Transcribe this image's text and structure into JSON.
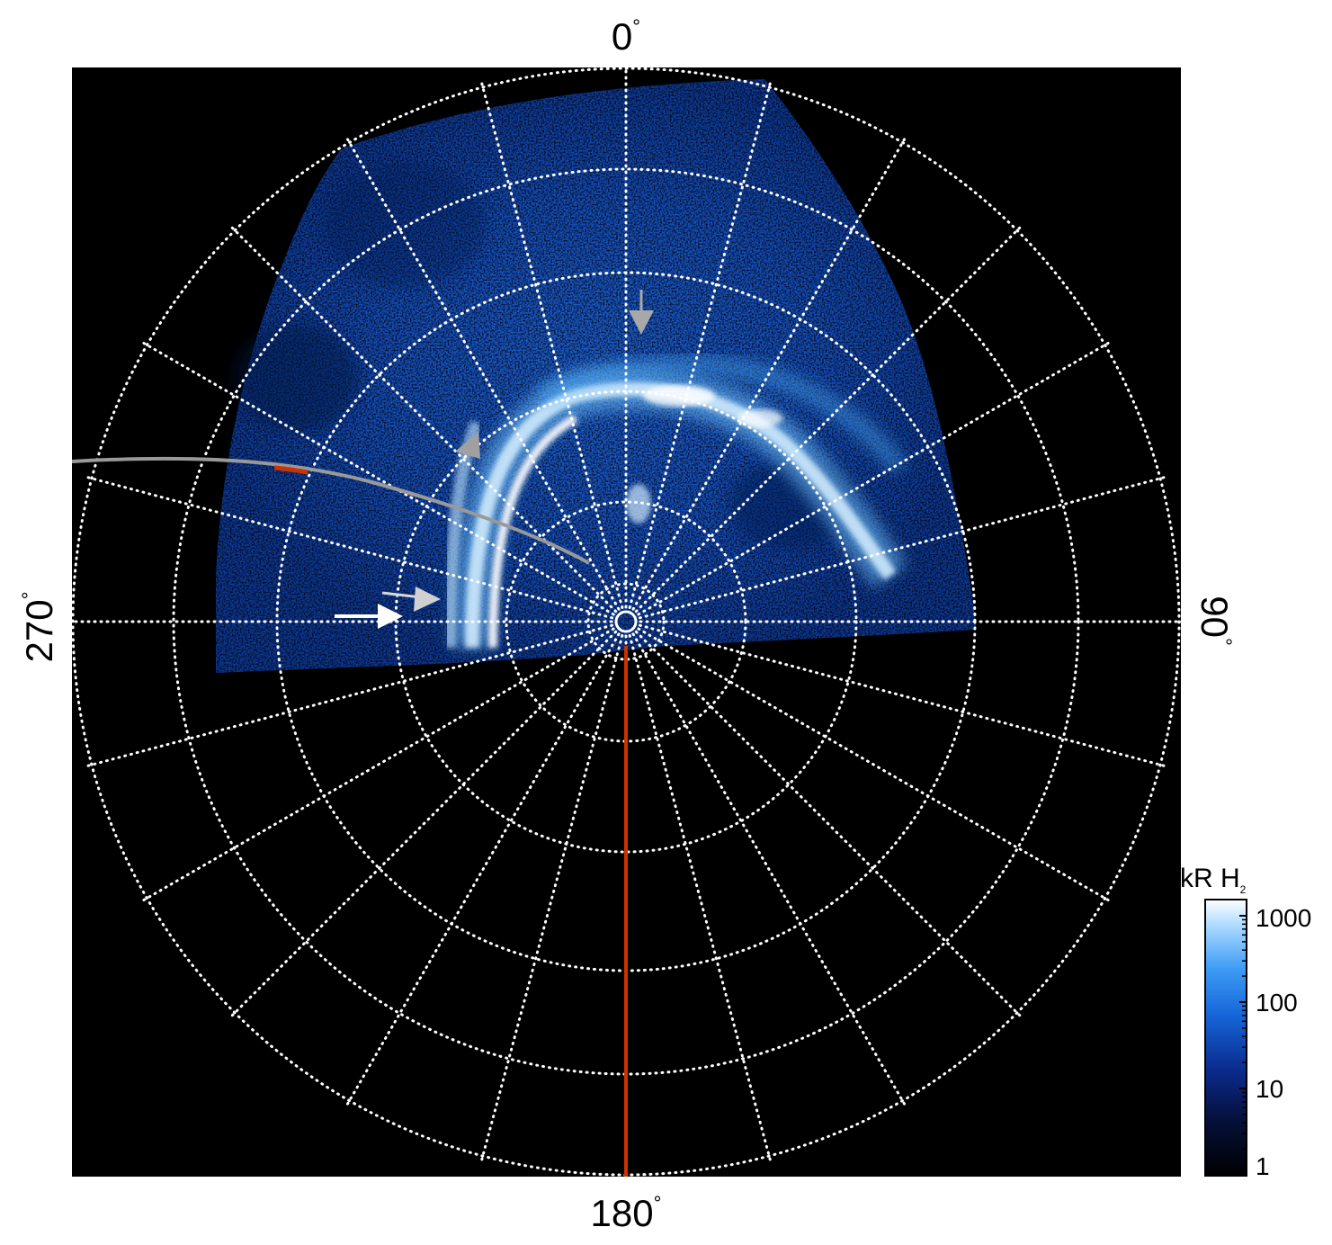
{
  "figure": {
    "angle_labels": {
      "top": {
        "value": "0",
        "unit": "°"
      },
      "right": {
        "value": "90",
        "unit": "°"
      },
      "bottom": {
        "value": "180",
        "unit": "°"
      },
      "left": {
        "value": "270",
        "unit": "°"
      }
    },
    "colorbar": {
      "title_main": "kR H",
      "title_sub": "2",
      "ticks": [
        "1000",
        "100",
        "10",
        "1"
      ],
      "colors": [
        "#000000",
        "#05103a",
        "#0a2a8c",
        "#1565d8",
        "#3d9cf5",
        "#a8d8ff",
        "#ffffff"
      ]
    },
    "colors": {
      "background": "#000000",
      "grid": "#ffffff",
      "footprint_track": "#999999",
      "meridian_line": "#cc3300",
      "white_arrow": "#ffffff",
      "grey_arrow": "#a0a0a0"
    }
  }
}
